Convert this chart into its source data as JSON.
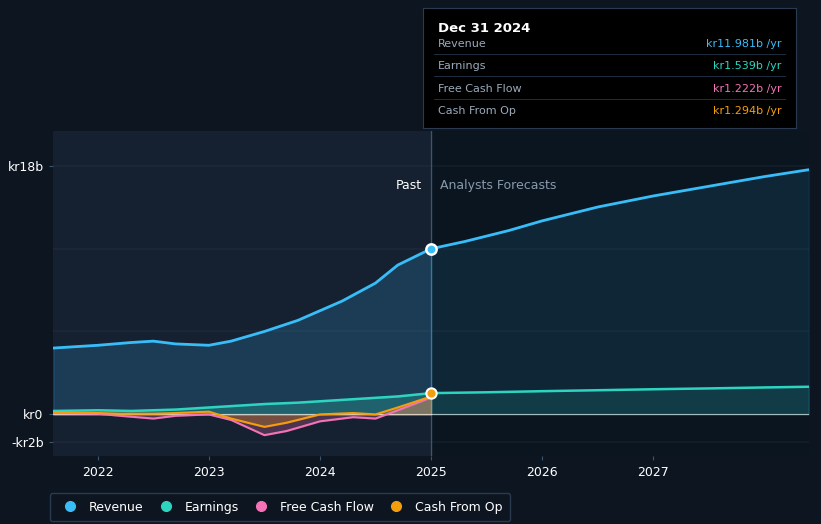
{
  "bg_color": "#0d1520",
  "plot_bg_past": "#111e2e",
  "plot_bg_forecast": "#0a1520",
  "title_text": "Dec 31 2024",
  "ylim": [
    -3.0,
    20.5
  ],
  "xlim_start": 2021.6,
  "xlim_end": 2028.4,
  "past_end": 2025.0,
  "xticks": [
    2022,
    2023,
    2024,
    2025,
    2026,
    2027
  ],
  "colors": {
    "revenue": "#38bdf8",
    "earnings": "#2dd4bf",
    "fcf": "#f472b6",
    "cashfromop": "#f59e0b"
  },
  "revenue_past": [
    [
      2021.6,
      4.8
    ],
    [
      2022.0,
      5.0
    ],
    [
      2022.3,
      5.2
    ],
    [
      2022.5,
      5.3
    ],
    [
      2022.7,
      5.1
    ],
    [
      2023.0,
      5.0
    ],
    [
      2023.2,
      5.3
    ],
    [
      2023.5,
      6.0
    ],
    [
      2023.8,
      6.8
    ],
    [
      2024.0,
      7.5
    ],
    [
      2024.2,
      8.2
    ],
    [
      2024.5,
      9.5
    ],
    [
      2024.7,
      10.8
    ],
    [
      2025.0,
      11.981
    ]
  ],
  "revenue_forecast": [
    [
      2025.0,
      11.981
    ],
    [
      2025.3,
      12.5
    ],
    [
      2025.7,
      13.3
    ],
    [
      2026.0,
      14.0
    ],
    [
      2026.5,
      15.0
    ],
    [
      2027.0,
      15.8
    ],
    [
      2027.5,
      16.5
    ],
    [
      2028.0,
      17.2
    ],
    [
      2028.4,
      17.7
    ]
  ],
  "earnings_past": [
    [
      2021.6,
      0.25
    ],
    [
      2022.0,
      0.3
    ],
    [
      2022.3,
      0.25
    ],
    [
      2022.5,
      0.3
    ],
    [
      2022.7,
      0.35
    ],
    [
      2023.0,
      0.5
    ],
    [
      2023.3,
      0.65
    ],
    [
      2023.5,
      0.75
    ],
    [
      2023.8,
      0.85
    ],
    [
      2024.0,
      0.95
    ],
    [
      2024.3,
      1.1
    ],
    [
      2024.7,
      1.3
    ],
    [
      2025.0,
      1.539
    ]
  ],
  "earnings_forecast": [
    [
      2025.0,
      1.539
    ],
    [
      2025.5,
      1.6
    ],
    [
      2026.0,
      1.68
    ],
    [
      2026.5,
      1.75
    ],
    [
      2027.0,
      1.82
    ],
    [
      2027.5,
      1.88
    ],
    [
      2028.0,
      1.95
    ],
    [
      2028.4,
      2.0
    ]
  ],
  "fcf_past": [
    [
      2021.6,
      0.1
    ],
    [
      2022.0,
      0.05
    ],
    [
      2022.2,
      -0.1
    ],
    [
      2022.5,
      -0.3
    ],
    [
      2022.7,
      -0.1
    ],
    [
      2023.0,
      0.0
    ],
    [
      2023.2,
      -0.4
    ],
    [
      2023.5,
      -1.5
    ],
    [
      2023.7,
      -1.2
    ],
    [
      2024.0,
      -0.5
    ],
    [
      2024.3,
      -0.2
    ],
    [
      2024.5,
      -0.3
    ],
    [
      2024.7,
      0.3
    ],
    [
      2025.0,
      1.222
    ]
  ],
  "cashfromop_past": [
    [
      2021.6,
      0.15
    ],
    [
      2022.0,
      0.1
    ],
    [
      2022.2,
      0.05
    ],
    [
      2022.5,
      0.05
    ],
    [
      2022.7,
      0.1
    ],
    [
      2023.0,
      0.2
    ],
    [
      2023.2,
      -0.3
    ],
    [
      2023.5,
      -0.9
    ],
    [
      2023.7,
      -0.6
    ],
    [
      2024.0,
      0.0
    ],
    [
      2024.3,
      0.1
    ],
    [
      2024.5,
      0.0
    ],
    [
      2024.7,
      0.5
    ],
    [
      2025.0,
      1.294
    ]
  ],
  "tooltip": {
    "date": "Dec 31 2024",
    "rows": [
      [
        "Revenue",
        "kr11.981b",
        "#38bdf8"
      ],
      [
        "Earnings",
        "kr1.539b",
        "#2dd4bf"
      ],
      [
        "Free Cash Flow",
        "kr1.222b",
        "#f472b6"
      ],
      [
        "Cash From Op",
        "kr1.294b",
        "#f59e0b"
      ]
    ]
  }
}
